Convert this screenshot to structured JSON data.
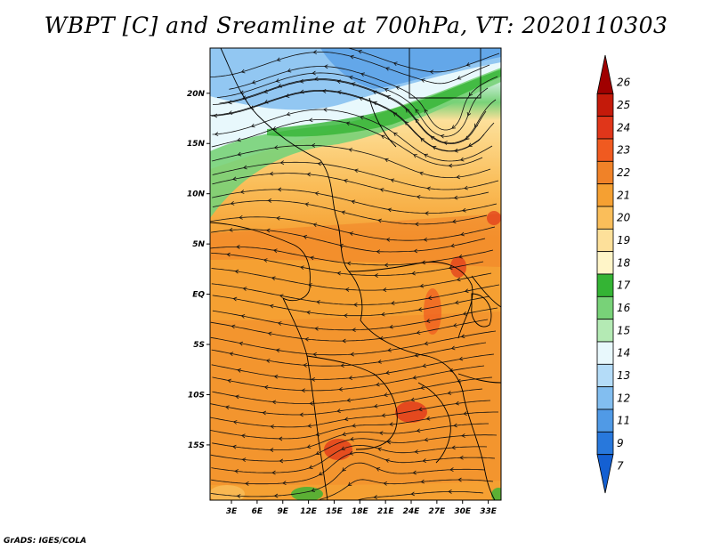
{
  "title": "WBPT [C] and Sreamline at 700hPa, VT: 2020110303",
  "footer": "GrADS: IGES/COLA",
  "map": {
    "lat_labels": [
      "20N",
      "15N",
      "10N",
      "5N",
      "EQ",
      "5S",
      "10S",
      "15S"
    ],
    "lon_labels": [
      "3E",
      "6E",
      "9E",
      "12E",
      "15E",
      "18E",
      "21E",
      "24E",
      "27E",
      "30E",
      "33E"
    ],
    "lat_range": [
      -20.5,
      24.5
    ],
    "lon_range": [
      0.5,
      34.5
    ]
  },
  "colorbar": {
    "labels": [
      "26",
      "25",
      "24",
      "23",
      "22",
      "21",
      "20",
      "19",
      "18",
      "17",
      "16",
      "15",
      "14",
      "13",
      "12",
      "11",
      "9",
      "7"
    ],
    "colors": [
      "#a00000",
      "#c41a0a",
      "#e0361a",
      "#f05a20",
      "#f08228",
      "#f5a032",
      "#fabe5a",
      "#fde09a",
      "#fff5c8",
      "#34b434",
      "#78d278",
      "#b4eab4",
      "#e8f8fc",
      "#b4dcf8",
      "#82bef0",
      "#509ae6",
      "#2878dc",
      "#1460d2"
    ]
  }
}
